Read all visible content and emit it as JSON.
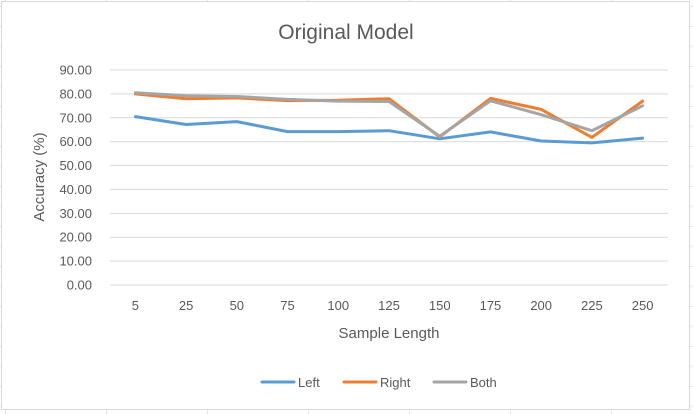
{
  "chart_data": {
    "type": "line",
    "title": "Original Model",
    "xlabel": "Sample Length",
    "ylabel": "Accuracy (%)",
    "categories": [
      "5",
      "25",
      "50",
      "75",
      "100",
      "125",
      "150",
      "175",
      "200",
      "225",
      "250"
    ],
    "ylim": [
      0,
      90
    ],
    "yticks": [
      "0.00",
      "10.00",
      "20.00",
      "30.00",
      "40.00",
      "50.00",
      "60.00",
      "70.00",
      "80.00",
      "90.00"
    ],
    "grid": true,
    "legend_position": "bottom",
    "series": [
      {
        "name": "Left",
        "color": "#5b9bd5",
        "values": [
          70.5,
          67.2,
          68.4,
          64.2,
          64.2,
          64.6,
          61.2,
          64.1,
          60.3,
          59.5,
          61.5
        ]
      },
      {
        "name": "Right",
        "color": "#ed7d31",
        "values": [
          80.0,
          78.0,
          78.3,
          77.2,
          77.3,
          78.0,
          62.0,
          78.1,
          73.5,
          61.8,
          77.0
        ]
      },
      {
        "name": "Both",
        "color": "#a5a5a5",
        "values": [
          80.5,
          79.2,
          78.9,
          77.7,
          77.0,
          76.8,
          62.3,
          77.1,
          71.3,
          64.6,
          75.0
        ]
      }
    ]
  }
}
